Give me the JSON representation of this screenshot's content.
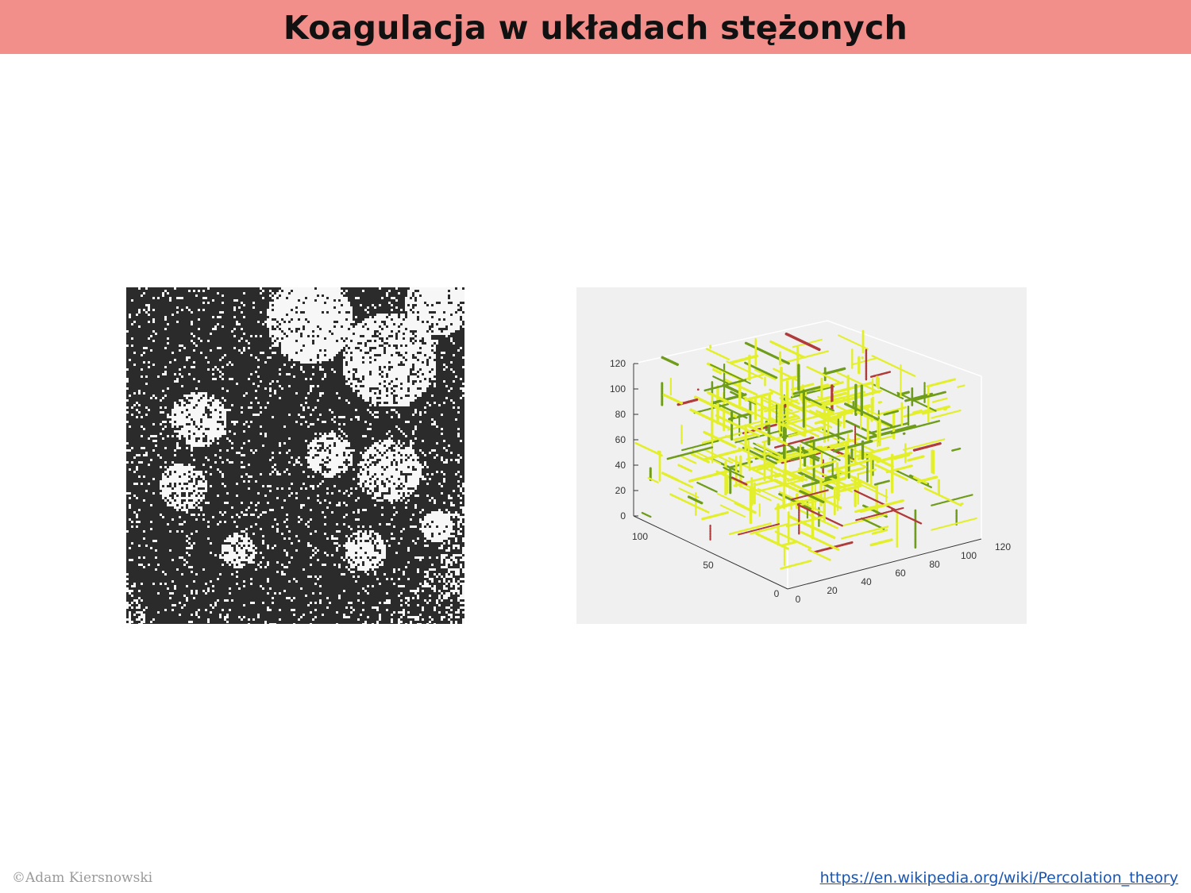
{
  "slide": {
    "title": "Koagulacja w układach stężonych"
  },
  "figures": {
    "left": {
      "icon": "percolation-2d-cluster-image"
    },
    "right": {
      "icon": "percolation-3d-plot-image",
      "colors": {
        "main": "#e3ef2a",
        "accent": "#6f9d1a",
        "highlight": "#b13a3a"
      }
    }
  },
  "chart_data": {
    "type": "scatter",
    "title": "",
    "z_ticks": [
      "0",
      "20",
      "40",
      "60",
      "80",
      "100",
      "120"
    ],
    "y_ticks": [
      "0",
      "50",
      "100"
    ],
    "x_ticks": [
      "0",
      "20",
      "40",
      "60",
      "80",
      "100",
      "120"
    ],
    "zlim": [
      0,
      120
    ],
    "ylim": [
      0,
      100
    ],
    "xlim": [
      0,
      120
    ]
  },
  "footer": {
    "copyright": "©Adam Kiersnowski",
    "source_link": "https://en.wikipedia.org/wiki/Percolation_theory"
  }
}
